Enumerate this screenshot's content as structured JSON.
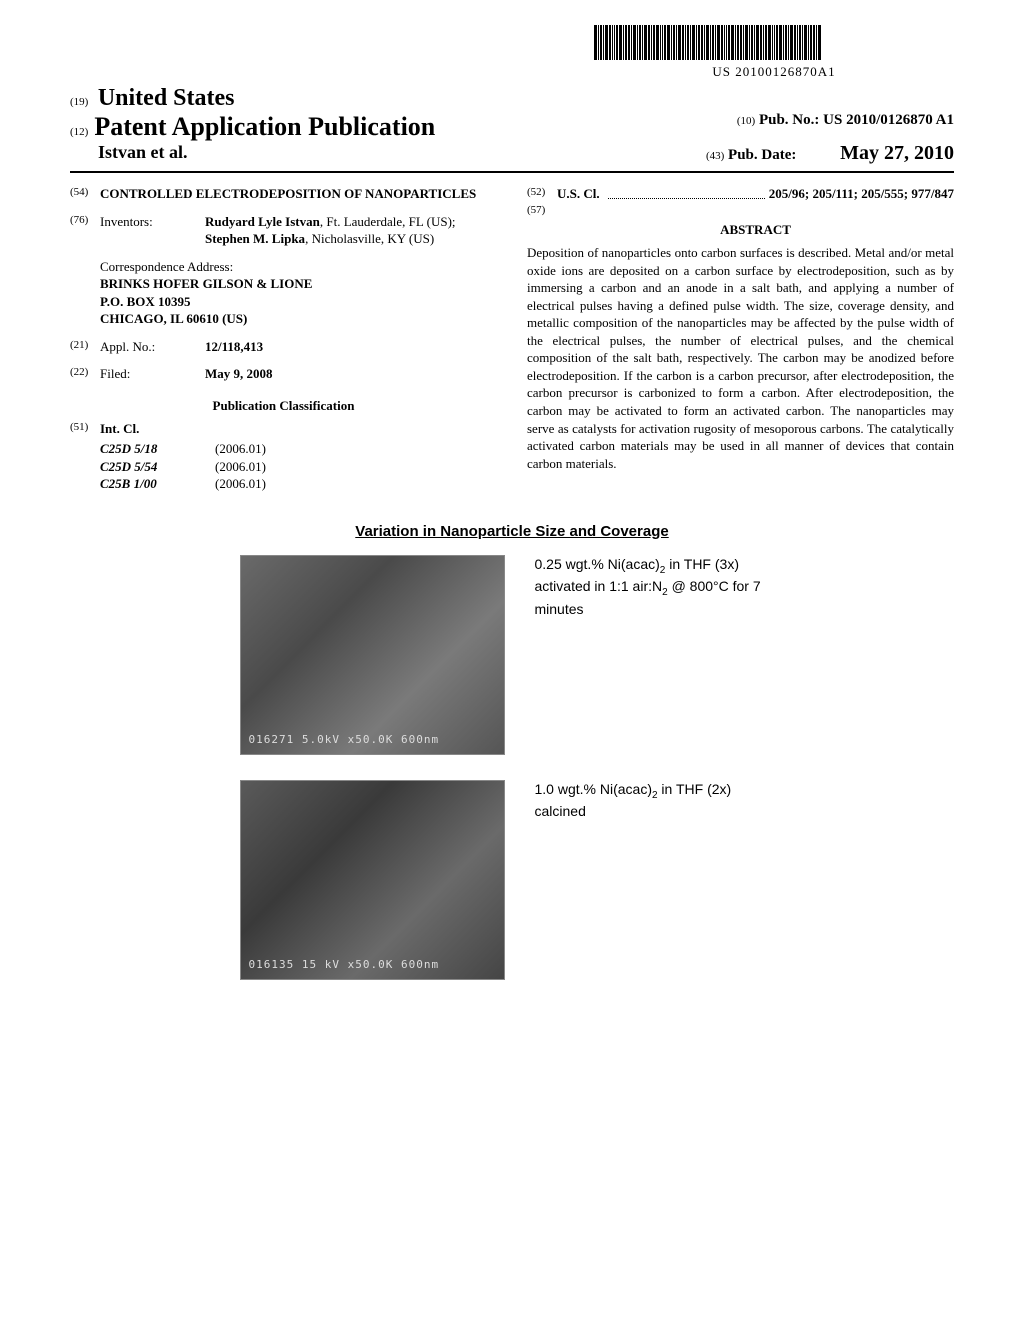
{
  "barcode_number": "US 20100126870A1",
  "header": {
    "country_num": "(19)",
    "country": "United States",
    "pub_type_num": "(12)",
    "pub_type": "Patent Application Publication",
    "pub_no_num": "(10)",
    "pub_no_label": "Pub. No.:",
    "pub_no": "US 2010/0126870 A1",
    "inventors": "Istvan et al.",
    "pub_date_num": "(43)",
    "pub_date_label": "Pub. Date:",
    "pub_date": "May 27, 2010"
  },
  "title": {
    "num": "(54)",
    "text": "CONTROLLED ELECTRODEPOSITION OF NANOPARTICLES"
  },
  "inventors_field": {
    "num": "(76)",
    "label": "Inventors:",
    "line1_bold": "Rudyard Lyle Istvan",
    "line1_rest": ", Ft. Lauderdale, FL (US); ",
    "line2_bold": "Stephen M. Lipka",
    "line2_rest": ", Nicholasville, KY (US)"
  },
  "correspondence": {
    "label": "Correspondence Address:",
    "line1": "BRINKS HOFER GILSON & LIONE",
    "line2": "P.O. BOX 10395",
    "line3": "CHICAGO, IL 60610 (US)"
  },
  "appl": {
    "num": "(21)",
    "label": "Appl. No.:",
    "value": "12/118,413"
  },
  "filed": {
    "num": "(22)",
    "label": "Filed:",
    "value": "May 9, 2008"
  },
  "pub_class_heading": "Publication Classification",
  "intcl": {
    "num": "(51)",
    "label": "Int. Cl.",
    "rows": [
      {
        "code": "C25D  5/18",
        "year": "(2006.01)"
      },
      {
        "code": "C25D  5/54",
        "year": "(2006.01)"
      },
      {
        "code": "C25B  1/00",
        "year": "(2006.01)"
      }
    ]
  },
  "uscl": {
    "num": "(52)",
    "label": "U.S. Cl.",
    "value": "205/96; 205/111; 205/555; 977/847"
  },
  "abstract": {
    "num": "(57)",
    "heading": "ABSTRACT",
    "text": "Deposition of nanoparticles onto carbon surfaces is described. Metal and/or metal oxide ions are deposited on a carbon surface by electrodeposition, such as by immersing a carbon and an anode in a salt bath, and applying a number of electrical pulses having a defined pulse width. The size, coverage density, and metallic composition of the nanoparticles may be affected by the pulse width of the electrical pulses, the number of electrical pulses, and the chemical composition of the salt bath, respectively. The carbon may be anodized before electrodeposition. If the carbon is a carbon precursor, after electrodeposition, the carbon precursor is carbonized to form a carbon. After electrodeposition, the carbon may be activated to form an activated carbon. The nanoparticles may serve as catalysts for activation rugosity of mesoporous carbons. The catalytically activated carbon materials may be used in all manner of devices that contain carbon materials."
  },
  "figure": {
    "title": "Variation in Nanoparticle Size and Coverage",
    "images": [
      {
        "sem_text": "016271 5.0kV x50.0K  600nm",
        "caption_html": "0.25 wgt.% Ni(acac)<sub>2</sub> in THF (3x) activated in 1:1 air:N<sub>2</sub> @ 800°C for 7 minutes"
      },
      {
        "sem_text": "016135 15 kV  x50.0K  600nm",
        "caption_html": "1.0 wgt.% Ni(acac)<sub>2</sub> in THF (2x) calcined"
      }
    ]
  },
  "colors": {
    "text": "#000000",
    "background": "#ffffff",
    "sem_gray1": "#6a6a6a",
    "sem_gray2": "#4a4a4a"
  }
}
